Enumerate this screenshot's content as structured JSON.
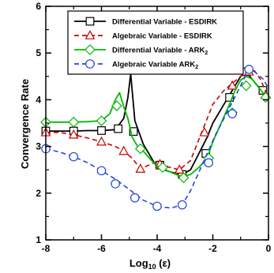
{
  "chart_data": {
    "type": "line",
    "title": "",
    "xlabel_main": "Log",
    "xlabel_sub": "10",
    "xlabel_rest": " (ε)",
    "ylabel": "Convergence Rate",
    "xlim": [
      -8,
      0
    ],
    "ylim": [
      1,
      6
    ],
    "xticks": [
      -8,
      -6,
      -4,
      -2,
      0
    ],
    "yticks": [
      1,
      2,
      3,
      4,
      5,
      6
    ],
    "xtick_labels": [
      "-8",
      "-6",
      "-4",
      "-2",
      "0"
    ],
    "ytick_labels": [
      "1",
      "2",
      "3",
      "4",
      "5",
      "6"
    ],
    "grid": false,
    "legend_position": "top-right",
    "series": [
      {
        "name": "Differential Variable - ESDIRK",
        "legend_main": "Differential Variable - ESDIRK",
        "legend_sub": "",
        "color": "#000000",
        "dash": "solid",
        "marker": "square",
        "x": [
          -8,
          -7.5,
          -7,
          -6.5,
          -6,
          -5.5,
          -5.2,
          -5.05,
          -4.95,
          -4.8,
          -4.5,
          -4.2,
          -4,
          -3.5,
          -3.1,
          -2.8,
          -2.5,
          -2.2,
          -2,
          -1.7,
          -1.4,
          -1.2,
          -1,
          -0.8,
          -0.6,
          -0.4,
          -0.2,
          0
        ],
        "y": [
          3.33,
          3.33,
          3.33,
          3.34,
          3.34,
          3.36,
          3.6,
          4.05,
          4.55,
          3.55,
          3.05,
          2.75,
          2.55,
          2.45,
          2.4,
          2.5,
          2.85,
          3.2,
          3.5,
          3.8,
          4.1,
          4.3,
          4.5,
          4.6,
          4.45,
          4.3,
          4.2,
          4.0
        ],
        "marker_x": [
          -8,
          -7,
          -6,
          -5.4,
          -4.85,
          -3.9,
          -3.1,
          -2.25,
          -1.4,
          -0.8,
          -0.2
        ],
        "marker_y": [
          3.33,
          3.33,
          3.34,
          3.38,
          3.32,
          2.6,
          2.4,
          2.85,
          4.05,
          4.6,
          4.2
        ]
      },
      {
        "name": "Algebraic Variable - ESDIRK",
        "legend_main": "Algebraic Variable - ESDIRK",
        "legend_sub": "",
        "color": "#cc0000",
        "dash": "dashed",
        "marker": "triangle",
        "x": [
          -8,
          -7.5,
          -7,
          -6.5,
          -6,
          -5.5,
          -5.2,
          -4.9,
          -4.6,
          -4.3,
          -4,
          -3.6,
          -3.2,
          -2.8,
          -2.4,
          -2,
          -1.6,
          -1.2,
          -0.8,
          -0.5,
          -0.3,
          0
        ],
        "y": [
          3.3,
          3.3,
          3.25,
          3.18,
          3.1,
          3.0,
          2.9,
          2.75,
          2.52,
          2.6,
          2.68,
          2.56,
          2.5,
          2.7,
          3.3,
          3.9,
          4.2,
          4.4,
          4.6,
          4.62,
          4.45,
          4.05
        ],
        "marker_x": [
          -8,
          -7,
          -6,
          -5.2,
          -4.6,
          -3.9,
          -3.2,
          -2.3,
          -1.3,
          -0.7,
          -0.1
        ],
        "marker_y": [
          3.3,
          3.25,
          3.1,
          2.9,
          2.52,
          2.62,
          2.5,
          3.3,
          4.3,
          4.6,
          4.1
        ]
      },
      {
        "name": "Differential Variable - ARK2",
        "legend_main": "Differential Variable - ARK",
        "legend_sub": "2",
        "color": "#00bb00",
        "dash": "solid",
        "marker": "diamond",
        "x": [
          -8,
          -7.5,
          -7,
          -6.5,
          -6,
          -5.7,
          -5.5,
          -5.35,
          -5.2,
          -5.05,
          -4.9,
          -4.7,
          -4.5,
          -4.2,
          -4,
          -3.7,
          -3.4,
          -3.1,
          -2.8,
          -2.5,
          -2.2,
          -2,
          -1.7,
          -1.4,
          -1.2,
          -1,
          -0.8,
          -0.6,
          -0.4,
          -0.2,
          0
        ],
        "y": [
          3.52,
          3.52,
          3.52,
          3.53,
          3.55,
          3.7,
          4.0,
          4.15,
          3.85,
          3.6,
          3.2,
          3.0,
          2.9,
          2.7,
          2.58,
          2.5,
          2.42,
          2.35,
          2.4,
          2.55,
          2.75,
          3.1,
          3.5,
          3.9,
          4.2,
          4.42,
          4.5,
          4.45,
          4.3,
          4.15,
          4.0
        ],
        "marker_x": [
          -8,
          -7,
          -6,
          -5.45,
          -4.6,
          -3.8,
          -3.05,
          -2.15,
          -1.3,
          -0.8,
          -0.1
        ],
        "marker_y": [
          3.52,
          3.52,
          3.55,
          3.87,
          2.95,
          2.55,
          2.33,
          2.75,
          3.72,
          4.3,
          4.05
        ]
      },
      {
        "name": "Algebraic Variable ARK2",
        "legend_main": "Algebraic Variable ARK",
        "legend_sub": "2",
        "color": "#2244dd",
        "dash": "dashed",
        "marker": "circle",
        "x": [
          -8,
          -7.5,
          -7,
          -6.5,
          -6,
          -5.5,
          -5,
          -4.5,
          -4,
          -3.5,
          -3.1,
          -2.8,
          -2.5,
          -2.2,
          -1.9,
          -1.6,
          -1.3,
          -1,
          -0.8,
          -0.6,
          -0.4,
          -0.2,
          0
        ],
        "y": [
          2.95,
          2.88,
          2.78,
          2.65,
          2.48,
          2.3,
          2.08,
          1.85,
          1.72,
          1.68,
          1.75,
          2.05,
          2.45,
          2.85,
          3.25,
          3.6,
          3.95,
          4.3,
          4.55,
          4.65,
          4.55,
          4.45,
          4.25
        ],
        "marker_x": [
          -8,
          -7,
          -6,
          -5.5,
          -4.8,
          -4,
          -3.1,
          -2.15,
          -1.3,
          -0.7
        ],
        "marker_y": [
          2.95,
          2.78,
          2.48,
          2.2,
          1.9,
          1.72,
          1.75,
          2.65,
          3.7,
          4.65
        ]
      }
    ]
  }
}
